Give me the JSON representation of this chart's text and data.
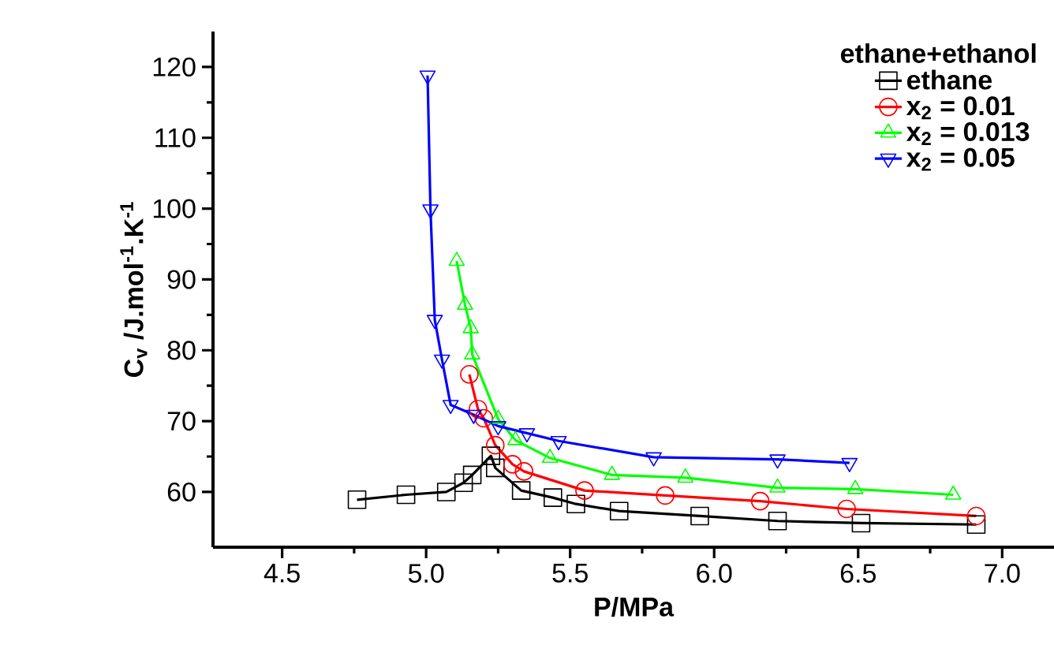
{
  "chart_data": {
    "type": "line",
    "xlabel": "P/MPa",
    "ylabel": "C$_{v}$ /J.mol$^{-1}$.K$^{-1}$",
    "legend_title": "ethane+ethanol",
    "xlim": [
      4.26,
      7.18
    ],
    "ylim": [
      52.2,
      125
    ],
    "xticks": [
      4.5,
      {
        "value": 5,
        "label": "5.0"
      },
      5.5,
      {
        "value": 6,
        "label": "6.0"
      },
      6.5,
      {
        "value": 7,
        "label": "7.0"
      }
    ],
    "yticks": [
      60,
      70,
      80,
      90,
      100,
      110,
      120
    ],
    "grid": false,
    "legend": "top right",
    "line_style": "solid",
    "series": [
      {
        "name": "ethane",
        "color": "#000000",
        "marker": "square",
        "x": [
          4.76,
          4.93,
          5.07,
          5.13,
          5.16,
          5.225,
          5.24,
          5.33,
          5.44,
          5.52,
          5.67,
          5.95,
          6.22,
          6.51,
          6.91
        ],
        "values": [
          58.9,
          59.6,
          60.0,
          61.3,
          62.4,
          65.1,
          63.4,
          60.2,
          59.2,
          58.3,
          57.3,
          56.6,
          55.9,
          55.6,
          55.4
        ]
      },
      {
        "name": "x$_{2}$ = 0.01",
        "color": "#ff0000",
        "marker": "circle",
        "x": [
          5.15,
          5.18,
          5.2,
          5.24,
          5.3,
          5.34,
          5.55,
          5.83,
          6.16,
          6.46,
          6.91
        ],
        "values": [
          76.6,
          71.7,
          70.4,
          66.6,
          63.9,
          62.9,
          60.2,
          59.5,
          58.7,
          57.6,
          56.6
        ]
      },
      {
        "name": "x$_{2}$ = 0.013",
        "color": "#00ff00",
        "marker": "triangle",
        "x": [
          5.106,
          5.135,
          5.155,
          5.16,
          5.25,
          5.31,
          5.43,
          5.645,
          5.9,
          6.22,
          6.49,
          6.83
        ],
        "values": [
          92.6,
          86.4,
          83.1,
          79.4,
          70.3,
          67.3,
          64.8,
          62.4,
          62.0,
          60.6,
          60.4,
          59.6
        ]
      },
      {
        "name": "x$_{2}$ = 0.05",
        "color": "#0000ff",
        "marker": "triangle down",
        "x": [
          5.005,
          5.015,
          5.03,
          5.055,
          5.085,
          5.165,
          5.25,
          5.35,
          5.46,
          5.79,
          6.22,
          6.47
        ],
        "values": [
          118.8,
          99.9,
          84.3,
          78.7,
          72.3,
          70.9,
          69.3,
          68.3,
          67.2,
          64.9,
          64.6,
          64.1
        ]
      }
    ]
  }
}
